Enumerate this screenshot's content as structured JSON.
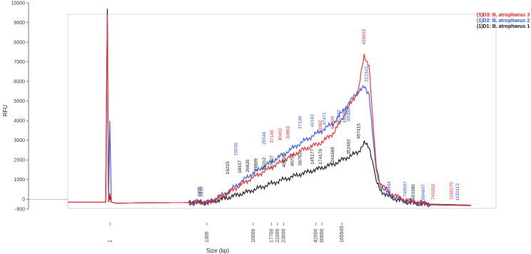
{
  "chart_data": {
    "type": "line",
    "title": "",
    "xlabel": "Size (bp)",
    "ylabel": "RFU",
    "ylim": [
      -500,
      10000
    ],
    "y_ticks": [
      10000,
      9000,
      8000,
      7000,
      6000,
      5000,
      4000,
      3000,
      2000,
      1000,
      0,
      -500
    ],
    "y_tick_labels": [
      "10000",
      "9000",
      "8000",
      "7000",
      "6000",
      "5000",
      "4000",
      "3000",
      "2000",
      "1000",
      "0",
      "-500"
    ],
    "x_tick_labels": [
      "1",
      "1300",
      "10000",
      "17700",
      "21000",
      "23000",
      "42000",
      "50000",
      "165500"
    ],
    "legend_position": "top-right",
    "legend": [
      {
        "label": "(1)D3: B. atrophaeus 3",
        "color": "#e8262a"
      },
      {
        "label": "(1)D2: B. atrophaeus 2",
        "color": "#2d55d8"
      },
      {
        "label": "(1)D1: B. atrophaeus 1",
        "color": "#111111"
      }
    ],
    "series": [
      {
        "name": "(1)D3: B. atrophaeus 3",
        "color": "#e8262a",
        "x": [
          0.0,
          0.03,
          0.05,
          0.08,
          0.094,
          0.098,
          0.101,
          0.104,
          0.108,
          0.12,
          0.2,
          0.3,
          0.33,
          0.35,
          0.4,
          0.45,
          0.52,
          0.58,
          0.63,
          0.66,
          0.72,
          0.735,
          0.747,
          0.755,
          0.76,
          0.765,
          0.775,
          0.8,
          0.83,
          0.86,
          0.9,
          1.0
        ],
        "y": [
          -150,
          -150,
          -150,
          -150,
          -150,
          9400,
          -150,
          300,
          -150,
          -200,
          -180,
          -170,
          -140,
          -170,
          350,
          1000,
          1800,
          2500,
          2900,
          3400,
          5500,
          7300,
          6800,
          4500,
          3000,
          1700,
          800,
          300,
          0,
          -150,
          -250,
          -300
        ]
      },
      {
        "name": "(1)D2: B. atrophaeus 2",
        "color": "#2d55d8",
        "x": [
          0.0,
          0.03,
          0.05,
          0.08,
          0.094,
          0.098,
          0.101,
          0.104,
          0.108,
          0.12,
          0.2,
          0.3,
          0.33,
          0.35,
          0.4,
          0.45,
          0.52,
          0.58,
          0.63,
          0.66,
          0.72,
          0.735,
          0.747,
          0.755,
          0.76,
          0.765,
          0.775,
          0.8,
          0.83,
          0.86,
          0.9,
          1.0
        ],
        "y": [
          -150,
          -150,
          -150,
          -150,
          -150,
          9300,
          -150,
          4000,
          -150,
          -200,
          -180,
          -170,
          -140,
          -170,
          400,
          1200,
          2100,
          2900,
          3500,
          3900,
          5500,
          5700,
          5400,
          3500,
          2500,
          1400,
          700,
          200,
          -50,
          -150,
          -250,
          -300
        ]
      },
      {
        "name": "(1)D1: B. atrophaeus 1",
        "color": "#111111",
        "x": [
          0.0,
          0.03,
          0.05,
          0.08,
          0.094,
          0.098,
          0.101,
          0.104,
          0.108,
          0.12,
          0.2,
          0.3,
          0.33,
          0.35,
          0.4,
          0.45,
          0.52,
          0.58,
          0.63,
          0.66,
          0.72,
          0.735,
          0.747,
          0.755,
          0.76,
          0.765,
          0.775,
          0.8,
          0.83,
          0.86,
          0.9,
          1.0
        ],
        "y": [
          -150,
          -150,
          -150,
          -150,
          -150,
          9700,
          -150,
          100,
          -150,
          -200,
          -180,
          -170,
          -160,
          -170,
          100,
          400,
          900,
          1300,
          1600,
          1800,
          2400,
          2850,
          2700,
          2000,
          1500,
          900,
          450,
          100,
          -100,
          -200,
          -280,
          -320
        ]
      }
    ],
    "peak_labels": [
      {
        "text": "425622",
        "color": "#e8262a",
        "x": 0.738,
        "y": 7800
      },
      {
        "text": "212343",
        "color": "#2d55d8",
        "x": 0.744,
        "y": 5900
      },
      {
        "text": "457415",
        "color": "#111111",
        "x": 0.725,
        "y": 3000
      },
      {
        "text": "352402",
        "color": "#111111",
        "x": 0.7,
        "y": 2200
      },
      {
        "text": "241609",
        "color": "#111111",
        "x": 0.66,
        "y": 1800
      },
      {
        "text": "174170",
        "color": "#111111",
        "x": 0.63,
        "y": 1700
      },
      {
        "text": "145177",
        "color": "#111111",
        "x": 0.61,
        "y": 1700
      },
      {
        "text": "56793",
        "color": "#111111",
        "x": 0.58,
        "y": 1650
      },
      {
        "text": "46701",
        "color": "#111111",
        "x": 0.56,
        "y": 1600
      },
      {
        "text": "40955",
        "color": "#111111",
        "x": 0.54,
        "y": 1550
      },
      {
        "text": "37207",
        "color": "#111111",
        "x": 0.51,
        "y": 1500
      },
      {
        "text": "35312",
        "color": "#111111",
        "x": 0.49,
        "y": 1400
      },
      {
        "text": "29809",
        "color": "#111111",
        "x": 0.47,
        "y": 1350
      },
      {
        "text": "26925",
        "color": "#111111",
        "x": 0.45,
        "y": 1300
      },
      {
        "text": "16215",
        "color": "#111111",
        "x": 0.4,
        "y": 1200
      },
      {
        "text": "18437",
        "color": "#111111",
        "x": 0.43,
        "y": 1250
      },
      {
        "text": "4805",
        "color": "#111111",
        "x": 0.33,
        "y": 50
      },
      {
        "text": "4835",
        "color": "#2d55d8",
        "x": 0.335,
        "y": 50
      },
      {
        "text": "15536",
        "color": "#2d55d8",
        "x": 0.42,
        "y": 2150
      },
      {
        "text": "25546",
        "color": "#2d55d8",
        "x": 0.49,
        "y": 2700
      },
      {
        "text": "37139",
        "color": "#2d55d8",
        "x": 0.58,
        "y": 3500
      },
      {
        "text": "47471",
        "color": "#2d55d8",
        "x": 0.64,
        "y": 3700
      },
      {
        "text": "44163",
        "color": "#2d55d8",
        "x": 0.61,
        "y": 3600
      },
      {
        "text": "85000",
        "color": "#2d55d8",
        "x": 0.7,
        "y": 3900
      },
      {
        "text": "145801",
        "color": "#2d55d8",
        "x": 0.69,
        "y": 3800
      },
      {
        "text": "122341",
        "color": "#2d55d8",
        "x": 0.675,
        "y": 3700
      },
      {
        "text": "27145",
        "color": "#e8262a",
        "x": 0.51,
        "y": 2800
      },
      {
        "text": "30461",
        "color": "#e8262a",
        "x": 0.53,
        "y": 2900
      },
      {
        "text": "33863",
        "color": "#e8262a",
        "x": 0.55,
        "y": 3000
      },
      {
        "text": "43382",
        "color": "#e8262a",
        "x": 0.63,
        "y": 3300
      },
      {
        "text": "66328",
        "color": "#e8262a",
        "x": 0.66,
        "y": 3500
      },
      {
        "text": "540464",
        "color": "#2d55d8",
        "x": 0.8,
        "y": 50
      },
      {
        "text": "748567",
        "color": "#2d55d8",
        "x": 0.84,
        "y": 50
      },
      {
        "text": "653380",
        "color": "#111111",
        "x": 0.86,
        "y": -100
      },
      {
        "text": "894807",
        "color": "#2d55d8",
        "x": 0.885,
        "y": -100
      },
      {
        "text": "742253",
        "color": "#e8262a",
        "x": 0.91,
        "y": -100
      },
      {
        "text": "1166170",
        "color": "#e8262a",
        "x": 0.955,
        "y": -100
      },
      {
        "text": "1150113",
        "color": "#2d55d8",
        "x": 0.97,
        "y": -150
      }
    ]
  }
}
